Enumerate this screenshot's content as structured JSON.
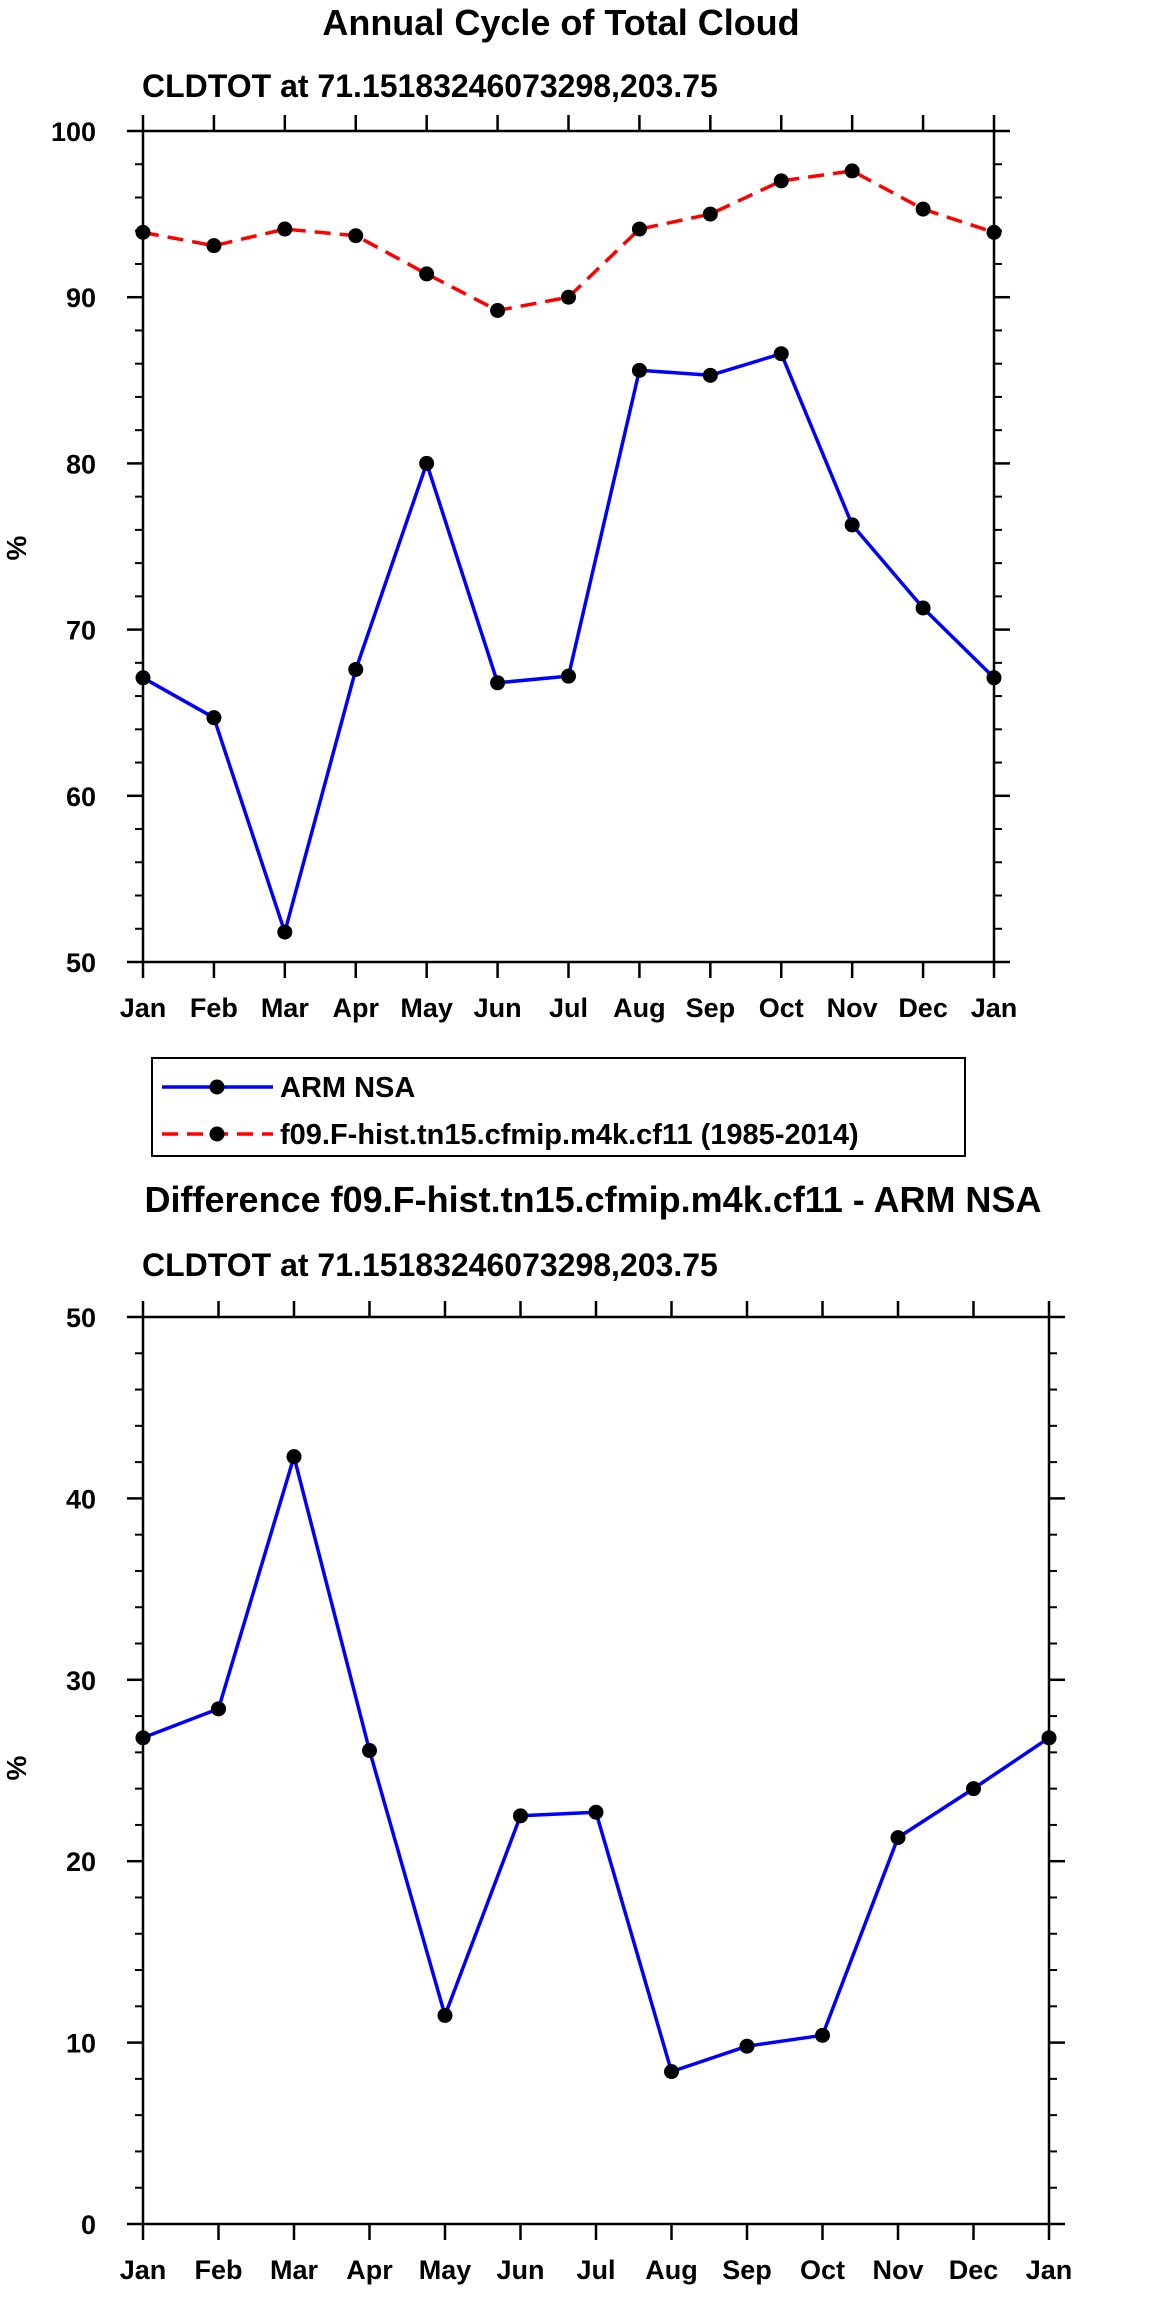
{
  "chart_data": [
    {
      "type": "line",
      "title": "Annual Cycle of Total Cloud",
      "subtitle": "CLDTOT at 71.15183246073298,203.75",
      "ylabel": "%",
      "xlabel": "",
      "categories": [
        "Jan",
        "Feb",
        "Mar",
        "Apr",
        "May",
        "Jun",
        "Jul",
        "Aug",
        "Sep",
        "Oct",
        "Nov",
        "Dec",
        "Jan"
      ],
      "ylim": [
        50,
        100
      ],
      "yticks": [
        50,
        60,
        70,
        80,
        90,
        100
      ],
      "yminor_step": 2,
      "series": [
        {
          "name": "ARM NSA",
          "color": "#0000ff",
          "dash": "solid",
          "values": [
            67.1,
            64.7,
            51.8,
            67.6,
            80.0,
            66.8,
            67.2,
            85.6,
            85.3,
            86.6,
            76.3,
            71.3,
            67.1
          ]
        },
        {
          "name": "f09.F-hist.tn15.cfmip.m4k.cf11 (1985-2014)",
          "color": "#ff0000",
          "dash": "dashed",
          "values": [
            93.9,
            93.1,
            94.1,
            93.7,
            91.4,
            89.2,
            90.0,
            94.1,
            95.0,
            97.0,
            97.6,
            95.3,
            93.9
          ]
        }
      ]
    },
    {
      "type": "line",
      "title": "Difference f09.F-hist.tn15.cfmip.m4k.cf11 - ARM NSA",
      "subtitle": "CLDTOT at 71.15183246073298,203.75",
      "ylabel": "%",
      "xlabel": "",
      "categories": [
        "Jan",
        "Feb",
        "Mar",
        "Apr",
        "May",
        "Jun",
        "Jul",
        "Aug",
        "Sep",
        "Oct",
        "Nov",
        "Dec",
        "Jan"
      ],
      "ylim": [
        0,
        50
      ],
      "yticks": [
        0,
        10,
        20,
        30,
        40,
        50
      ],
      "yminor_step": 2,
      "series": [
        {
          "name": "Difference",
          "color": "#0000ff",
          "dash": "solid",
          "values": [
            26.8,
            28.4,
            42.3,
            26.1,
            11.5,
            22.5,
            22.7,
            8.4,
            9.8,
            10.4,
            21.3,
            24.0,
            26.8
          ]
        }
      ]
    }
  ]
}
